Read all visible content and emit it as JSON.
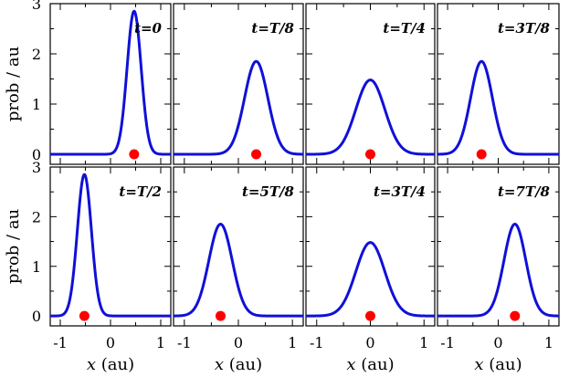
{
  "chart_data": {
    "type": "line",
    "layout": "2x4 grid of panels",
    "ylabel": "prob / au",
    "xlabel": {
      "var": "x",
      "unit": "(au)"
    },
    "xlim": [
      -1.2,
      1.2
    ],
    "ylim": [
      -0.2,
      3.0
    ],
    "xticks": [
      -1,
      0,
      1
    ],
    "yticks": [
      0,
      1,
      2,
      3
    ],
    "xtick_labels": [
      "-1",
      "0",
      "1"
    ],
    "ytick_labels": [
      "0",
      "1",
      "2",
      "3"
    ],
    "curve_color": "#1010d8",
    "marker_color": "#ff0000",
    "panels": [
      {
        "label": "t=0",
        "center": 0.47,
        "peak": 2.85,
        "marker_x": 0.47
      },
      {
        "label": "t=T/8",
        "center": 0.33,
        "peak": 1.85,
        "marker_x": 0.33
      },
      {
        "label": "t=T/4",
        "center": 0.0,
        "peak": 1.48,
        "marker_x": 0.0
      },
      {
        "label": "t=3T/8",
        "center": -0.33,
        "peak": 1.85,
        "marker_x": -0.33
      },
      {
        "label": "t=T/2",
        "center": -0.52,
        "peak": 2.85,
        "marker_x": -0.52
      },
      {
        "label": "t=5T/8",
        "center": -0.33,
        "peak": 1.85,
        "marker_x": -0.33
      },
      {
        "label": "t=3T/4",
        "center": 0.0,
        "peak": 1.48,
        "marker_x": 0.0
      },
      {
        "label": "t=7T/8",
        "center": 0.33,
        "peak": 1.85,
        "marker_x": 0.33
      }
    ]
  }
}
